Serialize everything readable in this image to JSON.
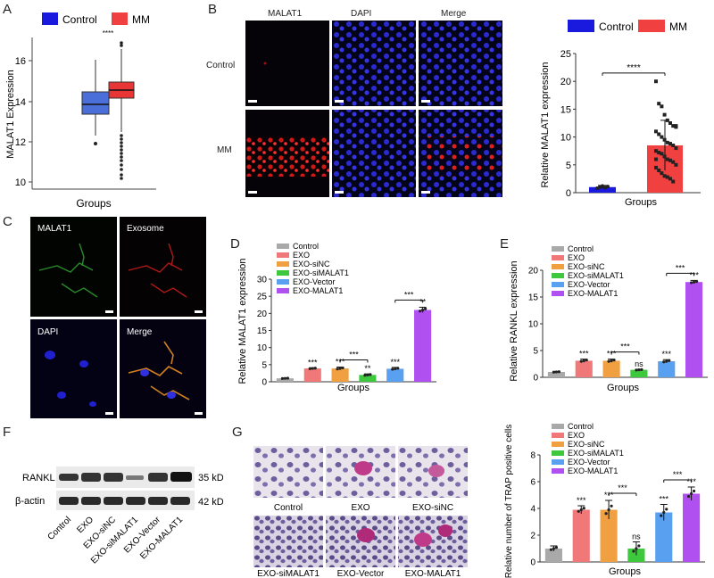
{
  "panels": {
    "A": {
      "letter": "A",
      "legend": [
        "Control",
        "MM"
      ],
      "ylabel": "MALAT1 Expression",
      "xlabel": "Groups",
      "sig": "****",
      "yticks": [
        "10",
        "12",
        "14",
        "16"
      ]
    },
    "B": {
      "letter": "B",
      "col_labels": [
        "MALAT1",
        "DAPI",
        "Merge"
      ],
      "row_labels": [
        "Control",
        "MM"
      ]
    },
    "C": {
      "letter": "C",
      "labels": [
        "MALAT1",
        "Exosome",
        "DAPI",
        "Merge"
      ]
    },
    "D": {
      "letter": "D"
    },
    "E": {
      "letter": "E"
    },
    "F": {
      "letter": "F",
      "row_labels": [
        "RANKL",
        "β-actin"
      ],
      "kda": [
        "35 kDa",
        "42 kDa"
      ],
      "lanes": [
        "Control",
        "EXO",
        "EXO-siNC",
        "EXO-siMALAT1",
        "EXO-Vector",
        "EXO-MALAT1"
      ]
    },
    "G": {
      "letter": "G",
      "image_labels": [
        "Control",
        "EXO",
        "EXO-siNC",
        "EXO-siMALAT1",
        "EXO-Vector",
        "EXO-MALAT1"
      ]
    }
  },
  "colors": {
    "control_blue": "#1a1adf",
    "mm_red": "#f04040",
    "group_colors": [
      "#a9a9a9",
      "#f07878",
      "#f0a040",
      "#3ec83e",
      "#5aa0f0",
      "#b050f0"
    ]
  },
  "chart_data": [
    {
      "id": "B",
      "type": "bar",
      "legend": [
        "Control",
        "MM"
      ],
      "categories": [
        "Control",
        "MM"
      ],
      "values": [
        1.0,
        8.5
      ],
      "errors": [
        0.3,
        4.5
      ],
      "sig": "****",
      "ylabel": "Relative MALAT1 expression",
      "xlabel": "Groups",
      "ylim": [
        0,
        25
      ],
      "yticks": [
        0,
        5,
        10,
        15,
        20,
        25
      ],
      "points_mm": [
        20,
        16,
        15.5,
        14,
        13,
        12.5,
        12,
        11.8,
        11,
        10.5,
        10,
        9.5,
        9,
        8.8,
        8.5,
        8,
        7.5,
        7.2,
        7,
        6.5,
        6,
        5.8,
        5.5,
        5,
        4.5,
        4,
        3.5,
        3,
        2.8,
        2.5,
        2,
        12,
        6
      ],
      "points_control": [
        0.8,
        1.0,
        1.2,
        0.9,
        1.1
      ]
    },
    {
      "id": "D",
      "type": "bar",
      "legend": [
        "Control",
        "EXO",
        "EXO-siNC",
        "EXO-siMALAT1",
        "EXO-Vector",
        "EXO-MALAT1"
      ],
      "categories": [
        "Control",
        "EXO",
        "EXO-siNC",
        "EXO-siMALAT1",
        "EXO-Vector",
        "EXO-MALAT1"
      ],
      "values": [
        1.0,
        3.9,
        3.9,
        2.0,
        3.8,
        21.0
      ],
      "errors": [
        0.1,
        0.2,
        0.4,
        0.3,
        0.4,
        0.8
      ],
      "labels": [
        "",
        "***",
        "***",
        "**",
        "***",
        "**"
      ],
      "brackets": [
        {
          "from": 2,
          "to": 3,
          "text": "***"
        },
        {
          "from": 4,
          "to": 5,
          "text": "***"
        }
      ],
      "ylabel": "Relative MALAT1 expression",
      "xlabel": "Groups",
      "ylim": [
        0,
        30
      ],
      "yticks": [
        0,
        5,
        10,
        15,
        20,
        25,
        30
      ]
    },
    {
      "id": "E",
      "type": "bar",
      "legend": [
        "Control",
        "EXO",
        "EXO-siNC",
        "EXO-siMALAT1",
        "EXO-Vector",
        "EXO-MALAT1"
      ],
      "categories": [
        "Control",
        "EXO",
        "EXO-siNC",
        "EXO-siMALAT1",
        "EXO-Vector",
        "EXO-MALAT1"
      ],
      "values": [
        1.0,
        3.1,
        3.1,
        1.4,
        3.0,
        17.8
      ],
      "errors": [
        0.1,
        0.3,
        0.3,
        0.1,
        0.3,
        0.3
      ],
      "labels": [
        "",
        "***",
        "***",
        "ns",
        "***",
        "***"
      ],
      "brackets": [
        {
          "from": 2,
          "to": 3,
          "text": "***"
        },
        {
          "from": 4,
          "to": 5,
          "text": "***"
        }
      ],
      "ylabel": "Relative RANKL expression",
      "xlabel": "Groups",
      "ylim": [
        0,
        20
      ],
      "yticks": [
        0,
        5,
        10,
        15,
        20
      ]
    },
    {
      "id": "G",
      "type": "bar",
      "legend": [
        "Control",
        "EXO",
        "EXO-siNC",
        "EXO-siMALAT1",
        "EXO-Vector",
        "EXO-MALAT1"
      ],
      "categories": [
        "Control",
        "EXO",
        "EXO-siNC",
        "EXO-siMALAT1",
        "EXO-Vector",
        "EXO-MALAT1"
      ],
      "values": [
        1.0,
        3.9,
        3.9,
        1.0,
        3.7,
        5.1
      ],
      "errors": [
        0.2,
        0.3,
        0.7,
        0.5,
        0.6,
        0.5
      ],
      "labels": [
        "",
        "***",
        "***",
        "ns",
        "***",
        "***"
      ],
      "brackets": [
        {
          "from": 2,
          "to": 3,
          "text": "***"
        },
        {
          "from": 4,
          "to": 5,
          "text": "***"
        }
      ],
      "ylabel": "Relative number of TRAP positive cells",
      "xlabel": "Groups",
      "ylim": [
        0,
        8
      ],
      "yticks": [
        0,
        2,
        4,
        6,
        8
      ]
    }
  ]
}
